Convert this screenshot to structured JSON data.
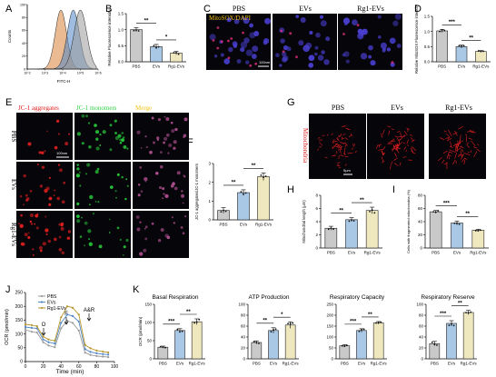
{
  "colors": {
    "pbs": "#c9c9c9",
    "evs": "#a9c8e6",
    "rg1": "#efe8bf",
    "sig": "#000000",
    "flow_orange": "#d9823a",
    "flow_blue": "#4f86c6",
    "flow_grey": "#9a9a9a",
    "micro_bg": "#05050a",
    "red_label": "#e01818",
    "green_label": "#2fd23f",
    "yellow_label": "#f3c417"
  },
  "panel_labels": {
    "A": "A",
    "B": "B",
    "C": "C",
    "D": "D",
    "E": "E",
    "F": "F",
    "G": "G",
    "H": "H",
    "I": "I",
    "J": "J",
    "K": "K"
  },
  "group_labels": [
    "PBS",
    "EVs",
    "Rg1-EVs"
  ],
  "micrographs": {
    "C": {
      "overlay_label": "MitoSOX/DAPI",
      "scale_bar": "100nm"
    },
    "E": {
      "channels": [
        "JC-1 aggregates",
        "JC-1 monomers",
        "Merge"
      ],
      "scale_bar": "100nm"
    },
    "G": {
      "side_label": "Mitochondria",
      "scale_bar": "5μm"
    }
  },
  "chart_data": [
    {
      "id": "A",
      "type": "histogram",
      "xlabel": "FITC-H",
      "ylabel": "Counts",
      "xticks": [
        "10^2",
        "10^3",
        "10^4",
        "10^5",
        "10^6"
      ],
      "yticks": [
        "0",
        "20",
        "40",
        "60",
        "80",
        "100"
      ],
      "series": [
        {
          "color_key": "flow_orange",
          "peak_log_x": 3.9
        },
        {
          "color_key": "flow_blue",
          "peak_log_x": 4.6
        },
        {
          "color_key": "flow_grey",
          "peak_log_x": 5.0
        }
      ]
    },
    {
      "id": "B",
      "type": "bar",
      "ylabel": "Relative Fluorescence intensity",
      "categories": [
        "PBS",
        "EVs",
        "Rg1-EVs"
      ],
      "values": [
        1.0,
        0.47,
        0.27
      ],
      "errors": [
        0.06,
        0.07,
        0.05
      ],
      "ylim": [
        0,
        1.5
      ],
      "yticks": [
        "0.0",
        "0.5",
        "1.0",
        "1.5"
      ],
      "significance": [
        {
          "from": 0,
          "to": 1,
          "label": "**"
        },
        {
          "from": 1,
          "to": 2,
          "label": "*"
        }
      ]
    },
    {
      "id": "D",
      "type": "bar",
      "ylabel": "Relative MitoSOX Fluorescence intensity",
      "categories": [
        "PBS",
        "EVs",
        "Rg1-EVs"
      ],
      "values": [
        1.02,
        0.5,
        0.34
      ],
      "errors": [
        0.05,
        0.05,
        0.03
      ],
      "ylim": [
        0,
        1.5
      ],
      "yticks": [
        "0.0",
        "0.5",
        "1.0",
        "1.5"
      ],
      "significance": [
        {
          "from": 0,
          "to": 1,
          "label": "***"
        },
        {
          "from": 1,
          "to": 2,
          "label": "**"
        }
      ]
    },
    {
      "id": "F",
      "type": "bar",
      "ylabel": "JC-1 aggregates/JC-1 monomers",
      "categories": [
        "PBS",
        "EVs",
        "Rg1-EVs"
      ],
      "values": [
        0.5,
        1.45,
        2.3
      ],
      "errors": [
        0.15,
        0.15,
        0.2
      ],
      "ylim": [
        0,
        3
      ],
      "yticks": [
        "0",
        "1",
        "2",
        "3"
      ],
      "significance": [
        {
          "from": 0,
          "to": 1,
          "label": "**"
        },
        {
          "from": 1,
          "to": 2,
          "label": "**"
        }
      ]
    },
    {
      "id": "H",
      "type": "bar",
      "ylabel": "Mitochondrial length (μm)",
      "categories": [
        "PBS",
        "EVs",
        "Rg1-EVs"
      ],
      "values": [
        3.0,
        4.3,
        5.7
      ],
      "errors": [
        0.3,
        0.3,
        0.5
      ],
      "ylim": [
        0,
        8
      ],
      "yticks": [
        "0",
        "2",
        "4",
        "6",
        "8"
      ],
      "significance": [
        {
          "from": 0,
          "to": 1,
          "label": "**"
        },
        {
          "from": 1,
          "to": 2,
          "label": "**"
        }
      ]
    },
    {
      "id": "I",
      "type": "bar",
      "ylabel": "Cells with fragmented mitochondria (%)",
      "categories": [
        "PBS",
        "EVs",
        "Rg1-EVs"
      ],
      "values": [
        55,
        38,
        27
      ],
      "errors": [
        2,
        3,
        1.5
      ],
      "ylim": [
        0,
        80
      ],
      "yticks": [
        "0",
        "20",
        "40",
        "60",
        "80"
      ],
      "significance": [
        {
          "from": 0,
          "to": 1,
          "label": "***"
        },
        {
          "from": 1,
          "to": 2,
          "label": "**"
        }
      ]
    },
    {
      "id": "J",
      "type": "line",
      "xlabel": "Time (min)",
      "ylabel": "OCR (pmol/min)",
      "xlim": [
        0,
        100
      ],
      "ylim": [
        0,
        250
      ],
      "xticks": [
        "0",
        "20",
        "40",
        "60",
        "80",
        "100"
      ],
      "yticks": [
        "0",
        "50",
        "100",
        "150",
        "200",
        "250"
      ],
      "annotations": [
        "O",
        "F",
        "A&R"
      ],
      "legend": [
        "PBS",
        "EVs",
        "Rg1-EVs"
      ],
      "x": [
        0,
        7,
        13,
        20,
        26,
        33,
        40,
        47,
        53,
        60,
        67,
        73,
        80,
        87,
        93
      ],
      "series": [
        {
          "name": "PBS",
          "color_key": "flow_grey",
          "values": [
            115,
            108,
            105,
            70,
            58,
            52,
            120,
            148,
            140,
            112,
            32,
            24,
            20,
            18,
            16
          ]
        },
        {
          "name": "EVs",
          "color_key": "flow_blue",
          "values": [
            125,
            122,
            120,
            80,
            70,
            65,
            140,
            170,
            165,
            145,
            45,
            35,
            30,
            27,
            25
          ]
        },
        {
          "name": "Rg1-EVs",
          "color_key": "yellow_dark",
          "values": [
            135,
            132,
            128,
            90,
            80,
            75,
            160,
            200,
            195,
            170,
            60,
            48,
            40,
            36,
            33
          ]
        }
      ]
    },
    {
      "id": "K1",
      "type": "bar",
      "title": "Basal Respiration",
      "ylabel": "OCR (pmol/min)",
      "categories": [
        "PBS",
        "EVs",
        "Rg1-EVs"
      ],
      "values": [
        32,
        78,
        102
      ],
      "errors": [
        3,
        5,
        8
      ],
      "ylim": [
        0,
        150
      ],
      "yticks": [
        "0",
        "50",
        "100",
        "150"
      ],
      "significance": [
        {
          "from": 0,
          "to": 1,
          "label": "***"
        },
        {
          "from": 1,
          "to": 2,
          "label": "**"
        }
      ]
    },
    {
      "id": "K2",
      "type": "bar",
      "title": "ATP Production",
      "categories": [
        "PBS",
        "EVs",
        "Rg1-EVs"
      ],
      "values": [
        30,
        52,
        62
      ],
      "errors": [
        3,
        5,
        6
      ],
      "ylim": [
        0,
        100
      ],
      "yticks": [
        "0",
        "20",
        "40",
        "60",
        "80",
        "100"
      ],
      "significance": [
        {
          "from": 0,
          "to": 1,
          "label": "**"
        },
        {
          "from": 1,
          "to": 2,
          "label": "*"
        }
      ]
    },
    {
      "id": "K3",
      "type": "bar",
      "title": "Respiratory Capacity",
      "categories": [
        "PBS",
        "EVs",
        "Rg1-EVs"
      ],
      "values": [
        60,
        130,
        165
      ],
      "errors": [
        5,
        8,
        6
      ],
      "ylim": [
        0,
        250
      ],
      "yticks": [
        "0",
        "50",
        "100",
        "150",
        "200",
        "250"
      ],
      "significance": [
        {
          "from": 0,
          "to": 1,
          "label": "***"
        },
        {
          "from": 1,
          "to": 2,
          "label": "**"
        }
      ]
    },
    {
      "id": "K4",
      "type": "bar",
      "title": "Respiratory Reserve",
      "categories": [
        "PBS",
        "EVs",
        "Rg1-EVs"
      ],
      "values": [
        28,
        65,
        85
      ],
      "errors": [
        4,
        5,
        4
      ],
      "ylim": [
        0,
        100
      ],
      "yticks": [
        "0",
        "20",
        "40",
        "60",
        "80",
        "100"
      ],
      "significance": [
        {
          "from": 0,
          "to": 1,
          "label": "***"
        },
        {
          "from": 1,
          "to": 2,
          "label": "**"
        }
      ]
    }
  ]
}
